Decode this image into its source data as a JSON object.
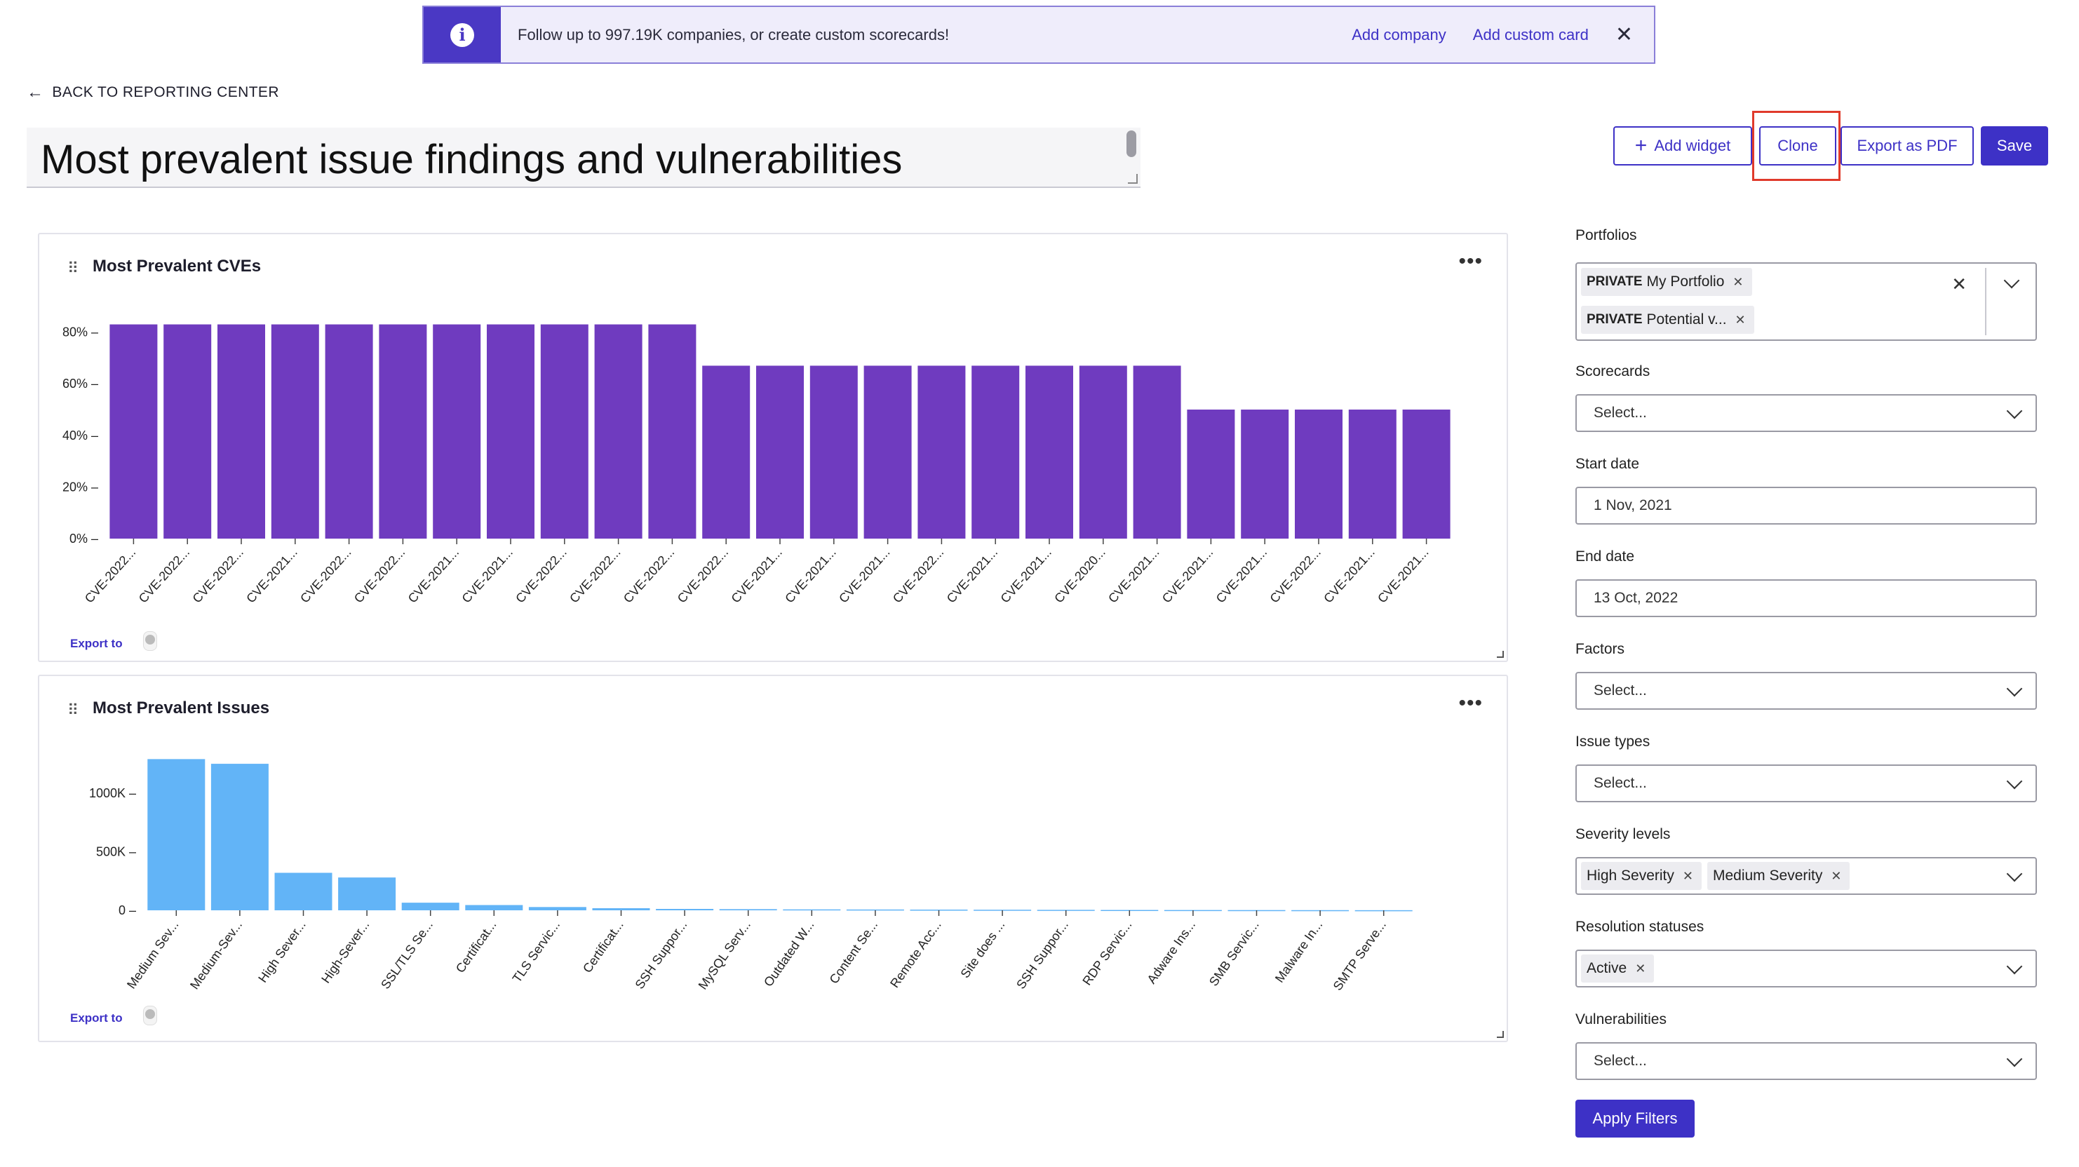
{
  "banner": {
    "message": "Follow up to 997.19K companies, or create custom scorecards!",
    "add_company": "Add company",
    "add_custom_card": "Add custom card",
    "close": "✕"
  },
  "nav": {
    "back_label": "BACK TO REPORTING CENTER"
  },
  "page": {
    "title": "Most prevalent issue findings and vulnerabilities"
  },
  "toolbar": {
    "add_widget": "Add widget",
    "clone": "Clone",
    "export_pdf": "Export as PDF",
    "save": "Save"
  },
  "widgets": {
    "cves": {
      "title": "Most Prevalent CVEs",
      "export_label": "Export to"
    },
    "issues": {
      "title": "Most Prevalent Issues",
      "export_label": "Export to"
    }
  },
  "filters": {
    "portfolios_label": "Portfolios",
    "portfolio_chips": [
      {
        "prefix": "PRIVATE",
        "name": "My Portfolio"
      },
      {
        "prefix": "PRIVATE",
        "name": "Potential v..."
      }
    ],
    "scorecards_label": "Scorecards",
    "scorecards_placeholder": "Select...",
    "start_date_label": "Start date",
    "start_date": "1 Nov, 2021",
    "end_date_label": "End date",
    "end_date": "13 Oct, 2022",
    "factors_label": "Factors",
    "factors_placeholder": "Select...",
    "issue_types_label": "Issue types",
    "issue_types_placeholder": "Select...",
    "severity_label": "Severity levels",
    "severity_chips": [
      "High Severity",
      "Medium Severity"
    ],
    "resolution_label": "Resolution statuses",
    "resolution_chips": [
      "Active"
    ],
    "vulnerabilities_label": "Vulnerabilities",
    "vulnerabilities_placeholder": "Select...",
    "apply": "Apply Filters"
  },
  "chart_data": [
    {
      "type": "bar",
      "title": "Most Prevalent CVEs",
      "categories": [
        "CVE-2022...",
        "CVE-2022...",
        "CVE-2022...",
        "CVE-2021...",
        "CVE-2022...",
        "CVE-2022...",
        "CVE-2021...",
        "CVE-2021...",
        "CVE-2022...",
        "CVE-2022...",
        "CVE-2022...",
        "CVE-2022...",
        "CVE-2021...",
        "CVE-2021...",
        "CVE-2021...",
        "CVE-2022...",
        "CVE-2021...",
        "CVE-2021...",
        "CVE-2020...",
        "CVE-2021...",
        "CVE-2021...",
        "CVE-2021...",
        "CVE-2022...",
        "CVE-2021...",
        "CVE-2021..."
      ],
      "values": [
        83,
        83,
        83,
        83,
        83,
        83,
        83,
        83,
        83,
        83,
        83,
        67,
        67,
        67,
        67,
        67,
        67,
        67,
        67,
        67,
        50,
        50,
        50,
        50,
        50
      ],
      "yticks": [
        "0%",
        "20%",
        "40%",
        "60%",
        "80%"
      ],
      "ylim": [
        0,
        100
      ],
      "color": "#6f3bbf"
    },
    {
      "type": "bar",
      "title": "Most Prevalent Issues",
      "categories": [
        "Medium Sev...",
        "Medium-Sev...",
        "High Sever...",
        "High-Sever...",
        "SSL/TLS Se...",
        "Certificat...",
        "TLS Servic...",
        "Certificat...",
        "SSH Suppor...",
        "MySQL Serv...",
        "Outdated W...",
        "Content Se...",
        "Remote Acc...",
        "Site does ...",
        "SSH Suppor...",
        "RDP Servic...",
        "Adware Ins...",
        "SMB Servic...",
        "Malware In...",
        "SMTP Serve..."
      ],
      "values": [
        1290000,
        1250000,
        320000,
        280000,
        65000,
        45000,
        28000,
        18000,
        12000,
        10000,
        8000,
        7000,
        6000,
        5000,
        4000,
        3000,
        2500,
        2000,
        1500,
        1000
      ],
      "yticks": [
        "0",
        "500K",
        "1000K"
      ],
      "ylim": [
        0,
        1400000
      ],
      "color": "#62b4f7"
    }
  ]
}
